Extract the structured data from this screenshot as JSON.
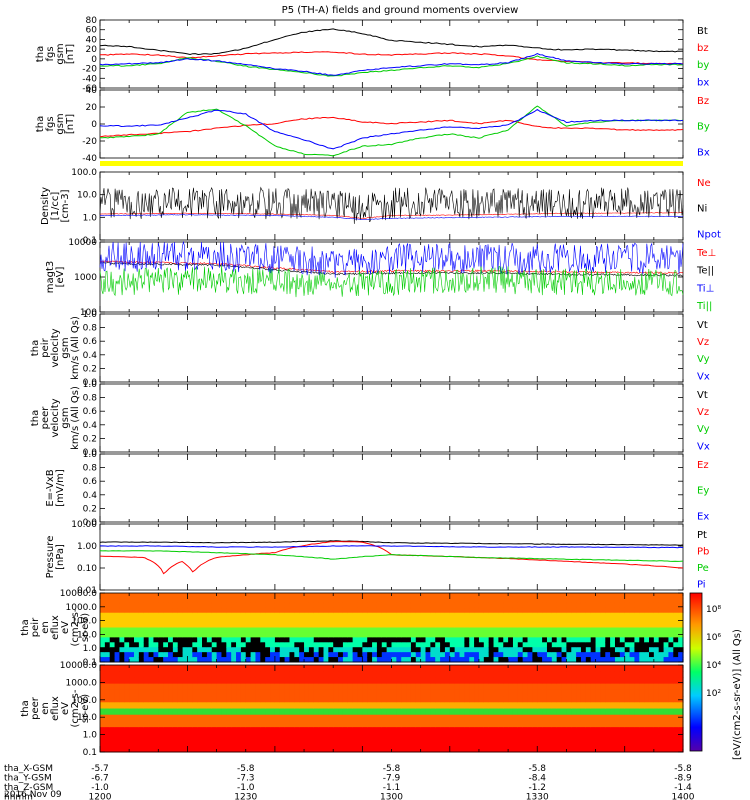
{
  "title": "P5 (TH-A) fields and ground moments overview",
  "colors": {
    "black": "#000000",
    "red": "#ff0000",
    "green": "#00cc00",
    "blue": "#0000ff",
    "yellow": "#ffff00"
  },
  "chart_data": [
    {
      "type": "line",
      "id": "fgs-gsm",
      "ylabel": [
        "tha",
        "fgs",
        "gsm",
        "[nT]"
      ],
      "yticks": [
        "80",
        "60",
        "40",
        "20",
        "0",
        "-20",
        "-40",
        "-60"
      ],
      "ylim": [
        -60,
        80
      ],
      "series": [
        {
          "name": "Bt",
          "color": "#000000",
          "x": [
            1200,
            1210,
            1220,
            1230,
            1240,
            1250,
            1260,
            1270,
            1280,
            1290,
            1300,
            1310,
            1320,
            1330,
            1340,
            1350,
            1360,
            1370,
            1380,
            1390,
            1400
          ],
          "values": [
            28,
            25,
            18,
            10,
            10,
            22,
            40,
            55,
            62,
            52,
            38,
            34,
            30,
            25,
            28,
            22,
            18,
            20,
            18,
            16,
            15
          ]
        },
        {
          "name": "bz",
          "color": "#ff0000",
          "x": [
            1200,
            1210,
            1220,
            1230,
            1240,
            1250,
            1260,
            1270,
            1280,
            1290,
            1300,
            1310,
            1320,
            1330,
            1340,
            1350,
            1360,
            1370,
            1380,
            1390,
            1400
          ],
          "values": [
            8,
            10,
            8,
            2,
            6,
            10,
            12,
            14,
            14,
            10,
            8,
            10,
            12,
            10,
            6,
            -2,
            -5,
            -8,
            -8,
            -10,
            -10
          ]
        },
        {
          "name": "by",
          "color": "#00cc00",
          "x": [
            1200,
            1210,
            1220,
            1230,
            1240,
            1250,
            1260,
            1270,
            1280,
            1290,
            1300,
            1310,
            1320,
            1330,
            1340,
            1350,
            1360,
            1370,
            1380,
            1390,
            1400
          ],
          "values": [
            -15,
            -14,
            -10,
            2,
            -5,
            -15,
            -22,
            -28,
            -36,
            -28,
            -24,
            -18,
            -14,
            -18,
            -10,
            5,
            -8,
            -10,
            -14,
            -12,
            -12
          ]
        },
        {
          "name": "bx",
          "color": "#0000ff",
          "x": [
            1200,
            1210,
            1220,
            1230,
            1240,
            1250,
            1260,
            1270,
            1280,
            1290,
            1300,
            1310,
            1320,
            1330,
            1340,
            1350,
            1360,
            1370,
            1380,
            1390,
            1400
          ],
          "values": [
            -12,
            -10,
            -8,
            0,
            -4,
            -12,
            -20,
            -26,
            -34,
            -24,
            -18,
            -14,
            -10,
            -12,
            -8,
            10,
            -4,
            -8,
            -10,
            -10,
            -10
          ]
        }
      ]
    },
    {
      "type": "line",
      "id": "fgs-gsm-xyz",
      "ylabel": [
        "tha",
        "fgs",
        "gsm",
        "[nT]"
      ],
      "yticks": [
        "40",
        "20",
        "0",
        "-20",
        "-40"
      ],
      "ylim": [
        -45,
        40
      ],
      "series": [
        {
          "name": "Bz",
          "color": "#ff0000",
          "x": [
            1200,
            1210,
            1220,
            1230,
            1240,
            1250,
            1260,
            1270,
            1280,
            1290,
            1300,
            1310,
            1320,
            1330,
            1340,
            1350,
            1360,
            1370,
            1380,
            1390,
            1400
          ],
          "values": [
            -18,
            -16,
            -14,
            -12,
            -8,
            -4,
            -2,
            4,
            6,
            0,
            -2,
            0,
            2,
            -2,
            2,
            -6,
            -8,
            -8,
            -10,
            -10,
            -10
          ]
        },
        {
          "name": "By",
          "color": "#00cc00",
          "x": [
            1200,
            1210,
            1220,
            1230,
            1240,
            1250,
            1260,
            1270,
            1280,
            1290,
            1300,
            1310,
            1320,
            1330,
            1340,
            1350,
            1360,
            1370,
            1380,
            1390,
            1400
          ],
          "values": [
            -20,
            -18,
            -15,
            12,
            16,
            -5,
            -30,
            -40,
            -42,
            -30,
            -28,
            -20,
            -15,
            -20,
            -10,
            20,
            -5,
            0,
            2,
            2,
            2
          ]
        },
        {
          "name": "Bx",
          "color": "#0000ff",
          "x": [
            1200,
            1210,
            1220,
            1230,
            1240,
            1250,
            1260,
            1270,
            1280,
            1290,
            1300,
            1310,
            1320,
            1330,
            1340,
            1350,
            1360,
            1370,
            1380,
            1390,
            1400
          ],
          "values": [
            -5,
            -5,
            -4,
            5,
            15,
            10,
            -12,
            -22,
            -34,
            -20,
            -15,
            -10,
            -6,
            -8,
            -4,
            15,
            0,
            2,
            2,
            2,
            2
          ]
        }
      ]
    },
    {
      "type": "line",
      "id": "density",
      "ylabel": [
        "Density",
        "[1/cc]",
        "[cm-3]"
      ],
      "yticks": [
        "100.0",
        "10.0",
        "1.0",
        "0.1"
      ],
      "ylim": [
        0.1,
        100
      ],
      "log": true,
      "series": [
        {
          "name": "Ne",
          "color": "#ff0000",
          "x": [
            1200,
            1230,
            1260,
            1280,
            1290,
            1300,
            1330,
            1360,
            1400
          ],
          "values": [
            1.4,
            1.5,
            1.4,
            1.2,
            0.9,
            1.2,
            1.3,
            1.5,
            1.6
          ]
        },
        {
          "name": "Ni",
          "color": "#000000",
          "x": [
            1200,
            1230,
            1260,
            1280,
            1290,
            1300,
            1330,
            1360,
            1400
          ],
          "values": [
            3,
            3,
            3,
            2.5,
            1.5,
            3,
            3,
            3,
            3
          ]
        },
        {
          "name": "Npot",
          "color": "#0000ff",
          "x": [
            1200,
            1230,
            1260,
            1280,
            1290,
            1300,
            1330,
            1360,
            1400
          ],
          "values": [
            1.2,
            1.3,
            1.2,
            1.0,
            0.8,
            0.9,
            1.0,
            1.1,
            1.1
          ]
        }
      ]
    },
    {
      "type": "line",
      "id": "temperature",
      "ylabel": [
        "magt3",
        "[eV]"
      ],
      "yticks": [
        "10000",
        "1000",
        "100"
      ],
      "ylim": [
        100,
        10000
      ],
      "log": true,
      "series": [
        {
          "name": "Te⊥",
          "color": "#ff0000",
          "x": [
            1200,
            1220,
            1240,
            1260,
            1280,
            1300,
            1330,
            1360,
            1400
          ],
          "values": [
            2800,
            2600,
            2400,
            1800,
            1400,
            1500,
            1500,
            1400,
            1300
          ]
        },
        {
          "name": "Te||",
          "color": "#000000",
          "x": [
            1200,
            1220,
            1240,
            1260,
            1280,
            1300,
            1330,
            1360,
            1400
          ],
          "values": [
            2500,
            2300,
            2200,
            1600,
            1200,
            1300,
            1300,
            1200,
            1100
          ]
        },
        {
          "name": "Ti⊥",
          "color": "#0000ff",
          "x": [
            1200,
            1220,
            1240,
            1260,
            1280,
            1300,
            1330,
            1360,
            1400
          ],
          "values": [
            6000,
            6000,
            6000,
            5000,
            4000,
            5000,
            5000,
            5000,
            5000
          ]
        },
        {
          "name": "Ti||",
          "color": "#00cc00",
          "x": [
            1200,
            1220,
            1240,
            1260,
            1280,
            1300,
            1330,
            1360,
            1400
          ],
          "values": [
            500,
            500,
            600,
            500,
            400,
            500,
            600,
            500,
            500
          ]
        }
      ]
    },
    {
      "type": "line",
      "id": "peir-velocity",
      "ylabel": [
        "tha",
        "peir",
        "velocity",
        "gsm",
        "km/s (All Qs)"
      ],
      "yticks": [
        "1.0",
        "0.8",
        "0.6",
        "0.4",
        "0.2",
        "0.0"
      ],
      "ylim": [
        0,
        1
      ],
      "series": [
        {
          "name": "Vt",
          "color": "#000000",
          "values": []
        },
        {
          "name": "Vz",
          "color": "#ff0000",
          "values": []
        },
        {
          "name": "Vy",
          "color": "#00cc00",
          "values": []
        },
        {
          "name": "Vx",
          "color": "#0000ff",
          "values": []
        }
      ]
    },
    {
      "type": "line",
      "id": "peer-velocity",
      "ylabel": [
        "tha",
        "peer",
        "velocity",
        "gsm",
        "km/s (All Qs)"
      ],
      "yticks": [
        "1.0",
        "0.8",
        "0.6",
        "0.4",
        "0.2",
        "0.0"
      ],
      "ylim": [
        0,
        1
      ],
      "series": [
        {
          "name": "Vt",
          "color": "#000000",
          "values": []
        },
        {
          "name": "Vz",
          "color": "#ff0000",
          "values": []
        },
        {
          "name": "Vy",
          "color": "#00cc00",
          "values": []
        },
        {
          "name": "Vx",
          "color": "#0000ff",
          "values": []
        }
      ]
    },
    {
      "type": "line",
      "id": "efield",
      "ylabel": [
        "E=-VxB",
        "[mV/m]"
      ],
      "yticks": [
        "1.0",
        "0.8",
        "0.6",
        "0.4",
        "0.2",
        "0.0"
      ],
      "ylim": [
        0,
        1
      ],
      "series": [
        {
          "name": "Ez",
          "color": "#ff0000",
          "values": []
        },
        {
          "name": "Ey",
          "color": "#00cc00",
          "values": []
        },
        {
          "name": "Ex",
          "color": "#0000ff",
          "values": []
        }
      ]
    },
    {
      "type": "line",
      "id": "pressure",
      "ylabel": [
        "Pressure",
        "[nPa]"
      ],
      "yticks": [
        "10.00",
        "1.00",
        "0.10",
        "0.01"
      ],
      "ylim": [
        0.01,
        10
      ],
      "log": true,
      "series": [
        {
          "name": "Pt",
          "color": "#000000",
          "x": [
            1200,
            1220,
            1240,
            1260,
            1280,
            1290,
            1300,
            1330,
            1360,
            1400
          ],
          "values": [
            1.5,
            1.5,
            1.4,
            1.5,
            1.7,
            1.6,
            1.4,
            1.3,
            1.2,
            1.1
          ]
        },
        {
          "name": "Pb",
          "color": "#ff0000",
          "x": [
            1200,
            1215,
            1222,
            1228,
            1232,
            1240,
            1260,
            1280,
            1290,
            1300,
            1330,
            1360,
            1400
          ],
          "values": [
            0.35,
            0.3,
            0.05,
            0.2,
            0.06,
            0.3,
            0.5,
            1.6,
            1.5,
            0.4,
            0.3,
            0.2,
            0.1
          ]
        },
        {
          "name": "Pe",
          "color": "#00cc00",
          "x": [
            1200,
            1220,
            1240,
            1260,
            1280,
            1300,
            1330,
            1360,
            1400
          ],
          "values": [
            0.6,
            0.6,
            0.5,
            0.4,
            0.25,
            0.4,
            0.3,
            0.25,
            0.2
          ]
        },
        {
          "name": "Pi",
          "color": "#0000ff",
          "x": [
            1200,
            1220,
            1240,
            1260,
            1280,
            1300,
            1330,
            1360,
            1400
          ],
          "values": [
            1.0,
            1.0,
            0.9,
            0.9,
            1.0,
            1.0,
            0.9,
            0.9,
            0.85
          ]
        }
      ]
    },
    {
      "type": "heatmap",
      "id": "peir-spec",
      "ylabel": [
        "tha",
        "peir",
        "en",
        "eflux",
        "eV",
        "(cm2-s-",
        "sr-eV)"
      ],
      "yticks": [
        "10000.0",
        "1000.0",
        "100.0",
        "10.0",
        "1.0",
        "0.1"
      ],
      "ylim": [
        0.1,
        10000
      ],
      "log": true
    },
    {
      "type": "heatmap",
      "id": "peer-spec",
      "ylabel": [
        "tha",
        "peer",
        "en",
        "eflux",
        "eV",
        "(cm2-s-",
        "sr-eV)"
      ],
      "yticks": [
        "10000.0",
        "1000.0",
        "100.0",
        "10.0",
        "1.0",
        "0.1"
      ],
      "ylim": [
        0.1,
        10000
      ],
      "log": true
    }
  ],
  "colorbar": {
    "ticks": [
      "10⁸",
      "10⁶",
      "10⁴",
      "10²"
    ],
    "label": "[eV/(cm2-s-sr-eV)] (All Qs)"
  },
  "xaxis": {
    "rows": [
      {
        "label": "tha_X-GSM",
        "values": [
          "-5.7",
          "-5.8",
          "-5.8",
          "-5.8",
          "-5.8"
        ]
      },
      {
        "label": "tha_Y-GSM",
        "values": [
          "-6.7",
          "-7.3",
          "-7.9",
          "-8.4",
          "-8.9"
        ]
      },
      {
        "label": "tha_Z-GSM",
        "values": [
          "-1.0",
          "-1.0",
          "-1.1",
          "-1.2",
          "-1.4"
        ]
      },
      {
        "label": "hhmm",
        "values": [
          "1200",
          "1230",
          "1300",
          "1330",
          "1400"
        ]
      }
    ],
    "date": "2016 Nov 09",
    "xlim": [
      1200,
      1400
    ]
  }
}
